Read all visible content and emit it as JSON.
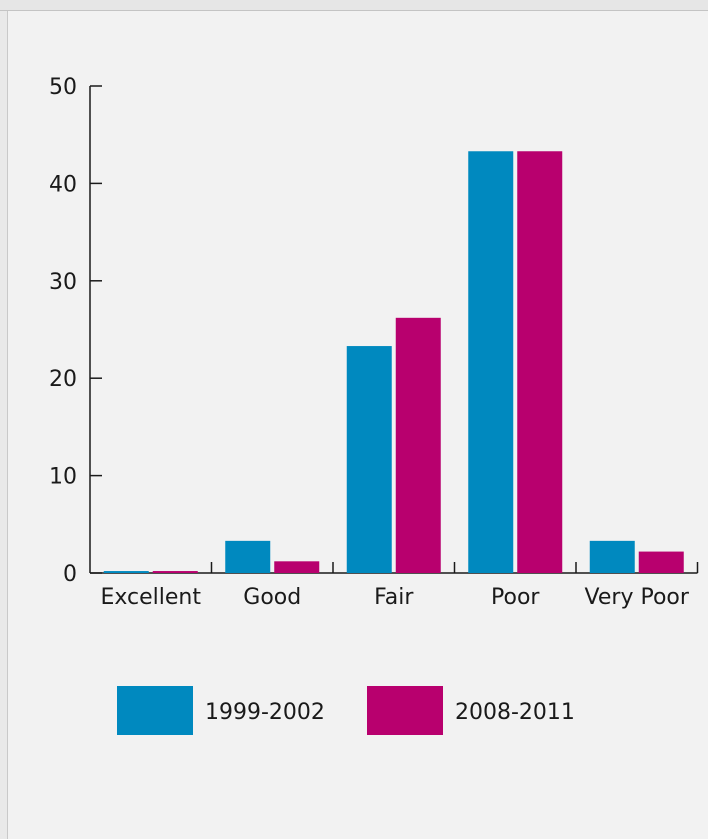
{
  "chart_data": {
    "type": "bar",
    "categories": [
      "Excellent",
      "Good",
      "Fair",
      "Poor",
      "Very Poor"
    ],
    "series": [
      {
        "name": "1999-2002",
        "color": "#0089bf",
        "values": [
          0.2,
          3.3,
          23.3,
          43.3,
          3.3
        ]
      },
      {
        "name": "2008-2011",
        "color": "#b8006e",
        "values": [
          0.2,
          1.2,
          26.2,
          43.3,
          2.2
        ]
      }
    ],
    "y_ticks": [
      "0",
      "10",
      "20",
      "30",
      "40",
      "50"
    ],
    "ylim": [
      0,
      50
    ],
    "grid": false,
    "legend_position": "bottom"
  }
}
